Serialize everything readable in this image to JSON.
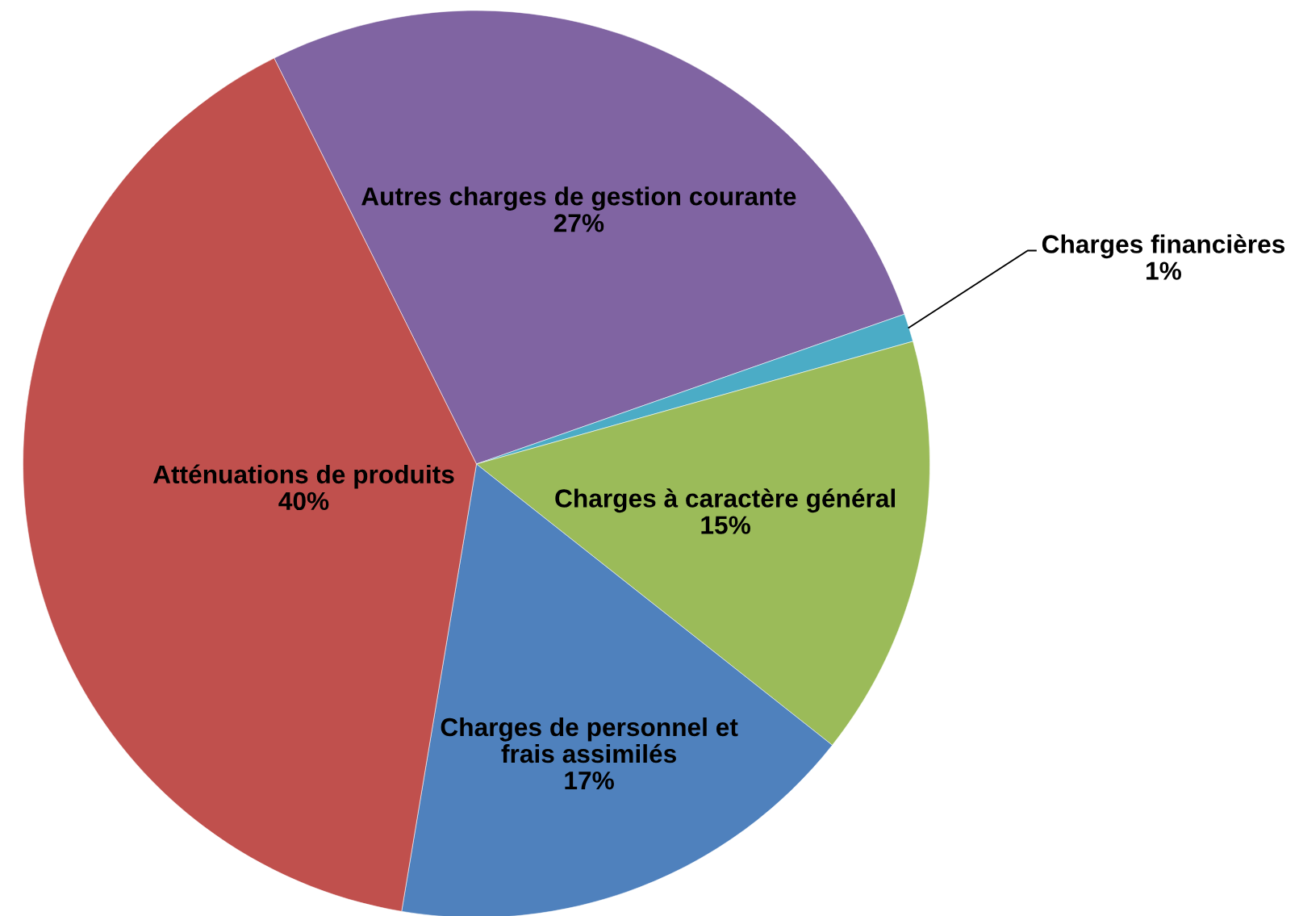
{
  "chart_data": {
    "type": "pie",
    "categories": [
      "Autres charges de gestion courante",
      "Charges financières",
      "Charges à caractère général",
      "Charges de personnel et\nfrais assimilés",
      "Atténuations de produits"
    ],
    "values": [
      27,
      1,
      15,
      17,
      40
    ],
    "colors": [
      "#8064a2",
      "#4bacc6",
      "#9bbb59",
      "#4f81bd",
      "#c0504d"
    ],
    "value_labels": [
      "27%",
      "1%",
      "15%",
      "17%",
      "40%"
    ]
  }
}
